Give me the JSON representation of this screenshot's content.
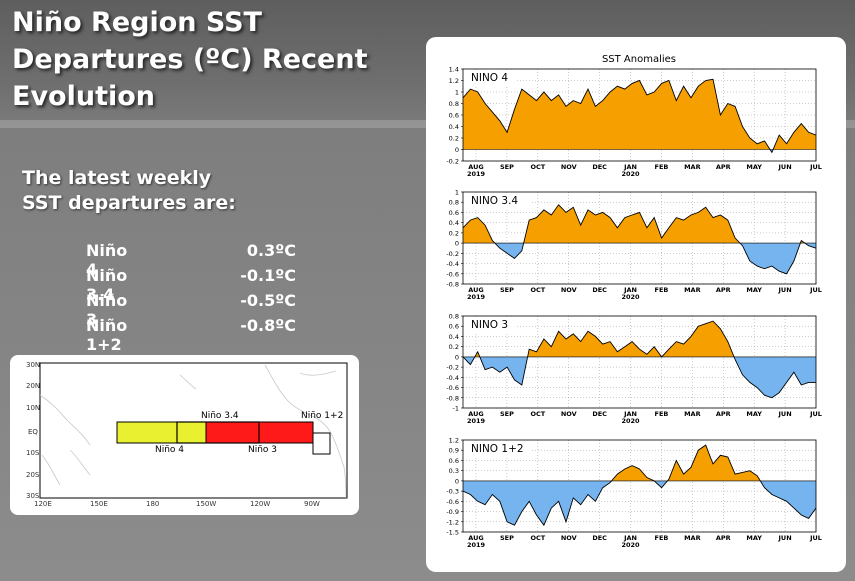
{
  "title": {
    "line1": "Niño Region SST",
    "line2": "Departures (ºC) Recent",
    "line3": "Evolution"
  },
  "subtitle": {
    "line1": "The latest weekly",
    "line2": "SST departures are:"
  },
  "departures": [
    {
      "name": "Niño 4",
      "value": "0.3ºC"
    },
    {
      "name": "Niño 3.4",
      "value": "-0.1ºC"
    },
    {
      "name": "Niño 3",
      "value": "-0.5ºC"
    },
    {
      "name": "Niño 1+2",
      "value": "-0.8ºC"
    }
  ],
  "map": {
    "lat_labels": [
      "30N",
      "20N",
      "10N",
      "EQ",
      "10S",
      "20S",
      "30S"
    ],
    "lon_labels": [
      "120E",
      "150E",
      "180",
      "150W",
      "120W",
      "90W"
    ],
    "regions": [
      {
        "name": "Niño 4",
        "color": "#e8f030"
      },
      {
        "name": "Niño 3.4",
        "color": "none"
      },
      {
        "name": "Niño 3",
        "color": "#ff1a1a"
      },
      {
        "name": "Niño 1+2",
        "color": "#ffffff"
      }
    ]
  },
  "chart_data": {
    "type": "area",
    "title": "SST Anomalies",
    "months": [
      "AUG",
      "SEP",
      "OCT",
      "NOV",
      "DEC",
      "JAN",
      "FEB",
      "MAR",
      "APR",
      "MAY",
      "JUN",
      "JUL"
    ],
    "year_labels": [
      {
        "month": "AUG",
        "year": "2019"
      },
      {
        "month": "JAN",
        "year": "2020"
      }
    ],
    "positive_color": "#f5a000",
    "negative_color": "#75b4ee",
    "panels": [
      {
        "label": "NINO 4",
        "ylim": [
          -0.2,
          1.4
        ],
        "yticks": [
          "1.4",
          "1.2",
          "1",
          "0.8",
          "0.6",
          "0.4",
          "0.2",
          "0",
          "-0.2"
        ],
        "values": [
          0.9,
          1.05,
          1.0,
          0.8,
          0.65,
          0.5,
          0.3,
          0.7,
          1.05,
          0.95,
          0.85,
          1.0,
          0.85,
          0.95,
          0.75,
          0.85,
          0.8,
          1.05,
          0.75,
          0.85,
          1.0,
          1.1,
          1.05,
          1.15,
          1.2,
          0.95,
          1.0,
          1.15,
          1.2,
          0.85,
          1.1,
          0.9,
          1.1,
          1.2,
          1.22,
          0.6,
          0.8,
          0.75,
          0.4,
          0.2,
          0.1,
          0.15,
          -0.05,
          0.25,
          0.1,
          0.3,
          0.45,
          0.3,
          0.25
        ]
      },
      {
        "label": "NINO 3.4",
        "ylim": [
          -0.8,
          1.0
        ],
        "yticks": [
          "1",
          "0.8",
          "0.6",
          "0.4",
          "0.2",
          "0",
          "-0.2",
          "-0.4",
          "-0.6",
          "-0.8"
        ],
        "values": [
          0.3,
          0.45,
          0.5,
          0.35,
          0.05,
          -0.1,
          -0.2,
          -0.3,
          -0.15,
          0.45,
          0.5,
          0.65,
          0.55,
          0.75,
          0.6,
          0.7,
          0.35,
          0.65,
          0.55,
          0.6,
          0.5,
          0.3,
          0.5,
          0.55,
          0.6,
          0.3,
          0.5,
          0.1,
          0.3,
          0.5,
          0.45,
          0.55,
          0.6,
          0.7,
          0.5,
          0.55,
          0.45,
          0.1,
          -0.05,
          -0.35,
          -0.45,
          -0.5,
          -0.45,
          -0.55,
          -0.6,
          -0.35,
          0.05,
          -0.05,
          -0.1
        ]
      },
      {
        "label": "NINO 3",
        "ylim": [
          -1.0,
          0.8
        ],
        "yticks": [
          "0.8",
          "0.6",
          "0.4",
          "0.2",
          "0",
          "-0.2",
          "-0.4",
          "-0.6",
          "-0.8",
          "-1"
        ],
        "values": [
          0.0,
          -0.15,
          0.1,
          -0.25,
          -0.2,
          -0.3,
          -0.2,
          -0.45,
          -0.55,
          0.15,
          0.1,
          0.35,
          0.2,
          0.5,
          0.35,
          0.45,
          0.3,
          0.5,
          0.4,
          0.25,
          0.3,
          0.1,
          0.2,
          0.3,
          0.15,
          0.05,
          0.2,
          0.0,
          0.15,
          0.3,
          0.25,
          0.4,
          0.6,
          0.65,
          0.7,
          0.55,
          0.3,
          -0.05,
          -0.35,
          -0.5,
          -0.6,
          -0.75,
          -0.8,
          -0.7,
          -0.5,
          -0.3,
          -0.55,
          -0.5,
          -0.5
        ]
      },
      {
        "label": "NINO 1+2",
        "ylim": [
          -1.5,
          1.2
        ],
        "yticks": [
          "1.2",
          "0.9",
          "0.6",
          "0.3",
          "0",
          "-0.3",
          "-0.6",
          "-0.9",
          "-1.2",
          "-1.5"
        ],
        "values": [
          -0.3,
          -0.4,
          -0.6,
          -0.7,
          -0.4,
          -0.6,
          -1.2,
          -1.3,
          -0.9,
          -0.6,
          -1.0,
          -1.3,
          -0.8,
          -0.6,
          -1.2,
          -0.5,
          -0.7,
          -0.4,
          -0.6,
          -0.2,
          -0.05,
          0.2,
          0.35,
          0.45,
          0.35,
          0.1,
          0.0,
          -0.2,
          0.05,
          0.6,
          0.2,
          0.4,
          0.9,
          1.05,
          0.5,
          0.75,
          0.7,
          0.2,
          0.25,
          0.3,
          0.15,
          -0.2,
          -0.4,
          -0.5,
          -0.6,
          -0.8,
          -1.0,
          -1.1,
          -0.8
        ]
      }
    ]
  }
}
